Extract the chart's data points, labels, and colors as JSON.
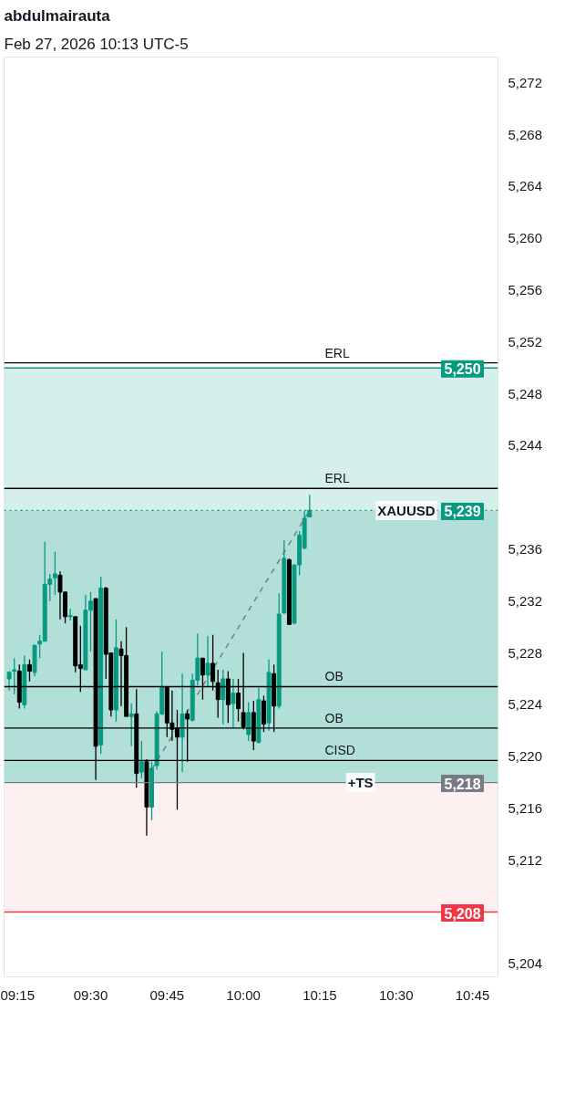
{
  "chart_data": {
    "type": "candlestick",
    "title": "abdulmairauta",
    "subtitle": "Feb 27, 2026 10:13 UTC-5",
    "x": [
      "2026-02-27T09:14",
      "2026-02-27T09:15",
      "2026-02-27T09:16",
      "2026-02-27T09:17",
      "2026-02-27T09:18",
      "2026-02-27T09:19",
      "2026-02-27T09:20",
      "2026-02-27T09:21",
      "2026-02-27T09:22",
      "2026-02-27T09:23",
      "2026-02-27T09:24",
      "2026-02-27T09:25",
      "2026-02-27T09:26",
      "2026-02-27T09:27",
      "2026-02-27T09:28",
      "2026-02-27T09:29",
      "2026-02-27T09:30",
      "2026-02-27T09:31",
      "2026-02-27T09:32",
      "2026-02-27T09:33",
      "2026-02-27T09:34",
      "2026-02-27T09:35",
      "2026-02-27T09:36",
      "2026-02-27T09:37",
      "2026-02-27T09:38",
      "2026-02-27T09:39",
      "2026-02-27T09:40",
      "2026-02-27T09:41",
      "2026-02-27T09:42",
      "2026-02-27T09:43",
      "2026-02-27T09:44",
      "2026-02-27T09:45",
      "2026-02-27T09:46",
      "2026-02-27T09:47",
      "2026-02-27T09:48",
      "2026-02-27T09:49",
      "2026-02-27T09:50",
      "2026-02-27T09:51",
      "2026-02-27T09:52",
      "2026-02-27T09:53",
      "2026-02-27T09:54",
      "2026-02-27T09:55",
      "2026-02-27T09:56",
      "2026-02-27T09:57",
      "2026-02-27T09:58",
      "2026-02-27T09:59",
      "2026-02-27T10:00",
      "2026-02-27T10:01",
      "2026-02-27T10:02",
      "2026-02-27T10:03",
      "2026-02-27T10:04",
      "2026-02-27T10:05",
      "2026-02-27T10:06",
      "2026-02-27T10:07",
      "2026-02-27T10:08",
      "2026-02-27T10:09",
      "2026-02-27T10:10",
      "2026-02-27T10:11",
      "2026-02-27T10:12",
      "2026-02-27T10:13"
    ],
    "ohlc": [
      [
        5226.0,
        5226.6,
        5225.1,
        5226.5
      ],
      [
        5226.6,
        5227.6,
        5224.8,
        5226.7
      ],
      [
        5226.6,
        5227.1,
        5223.7,
        5224.2
      ],
      [
        5224.0,
        5227.8,
        5223.7,
        5227.1
      ],
      [
        5227.1,
        5227.5,
        5225.8,
        5226.6
      ],
      [
        5226.5,
        5228.6,
        5226.2,
        5228.6
      ],
      [
        5228.7,
        5229.4,
        5227.6,
        5228.9
      ],
      [
        5228.9,
        5236.6,
        5228.9,
        5233.3
      ],
      [
        5233.3,
        5234.1,
        5232.0,
        5233.7
      ],
      [
        5233.8,
        5235.8,
        5232.5,
        5234.1
      ],
      [
        5234.0,
        5234.3,
        5230.6,
        5232.7
      ],
      [
        5232.7,
        5232.7,
        5230.3,
        5230.8
      ],
      [
        5230.8,
        5231.4,
        5230.5,
        5230.9
      ],
      [
        5230.8,
        5230.8,
        5226.5,
        5227.0
      ],
      [
        5227.1,
        5230.1,
        5225.0,
        5226.8
      ],
      [
        5226.7,
        5232.5,
        5226.7,
        5231.3
      ],
      [
        5231.3,
        5232.7,
        5228.1,
        5232.0
      ],
      [
        5232.2,
        5232.2,
        5218.2,
        5220.8
      ],
      [
        5220.9,
        5233.9,
        5220.2,
        5233.0
      ],
      [
        5233.0,
        5233.1,
        5226.0,
        5227.9
      ],
      [
        5228.0,
        5228.0,
        5223.1,
        5223.6
      ],
      [
        5223.6,
        5230.6,
        5222.7,
        5228.4
      ],
      [
        5228.3,
        5228.9,
        5223.9,
        5227.8
      ],
      [
        5227.8,
        5230.0,
        5223.1,
        5223.1
      ],
      [
        5223.1,
        5224.1,
        5220.8,
        5223.3
      ],
      [
        5223.3,
        5225.2,
        5217.6,
        5218.7
      ],
      [
        5218.8,
        5221.2,
        5218.3,
        5219.6
      ],
      [
        5219.6,
        5219.8,
        5213.9,
        5216.1
      ],
      [
        5216.1,
        5219.6,
        5215.1,
        5219.1
      ],
      [
        5219.3,
        5223.5,
        5219.0,
        5223.3
      ],
      [
        5223.3,
        5228.1,
        5223.2,
        5225.4
      ],
      [
        5225.4,
        5225.4,
        5221.5,
        5222.6
      ],
      [
        5222.6,
        5225.1,
        5221.2,
        5222.1
      ],
      [
        5222.2,
        5223.6,
        5215.9,
        5221.5
      ],
      [
        5221.5,
        5226.4,
        5218.8,
        5223.3
      ],
      [
        5223.3,
        5223.6,
        5219.6,
        5222.9
      ],
      [
        5222.8,
        5226.4,
        5222.7,
        5225.9
      ],
      [
        5225.9,
        5229.5,
        5225.5,
        5227.6
      ],
      [
        5227.6,
        5227.6,
        5224.4,
        5226.3
      ],
      [
        5226.3,
        5229.3,
        5225.4,
        5227.2
      ],
      [
        5227.2,
        5229.4,
        5225.1,
        5225.8
      ],
      [
        5225.7,
        5226.7,
        5223.0,
        5224.4
      ],
      [
        5224.4,
        5226.7,
        5222.5,
        5226.0
      ],
      [
        5226.0,
        5226.6,
        5222.6,
        5224.0
      ],
      [
        5224.1,
        5226.0,
        5222.2,
        5224.9
      ],
      [
        5224.9,
        5226.0,
        5222.7,
        5223.7
      ],
      [
        5223.4,
        5228.0,
        5222.1,
        5222.3
      ],
      [
        5221.7,
        5224.2,
        5221.2,
        5223.4
      ],
      [
        5223.4,
        5224.3,
        5220.5,
        5221.2
      ],
      [
        5221.1,
        5225.3,
        5221.0,
        5224.4
      ],
      [
        5224.3,
        5224.7,
        5221.9,
        5222.5
      ],
      [
        5222.6,
        5227.5,
        5222.0,
        5226.5
      ],
      [
        5226.4,
        5227.1,
        5221.9,
        5223.9
      ],
      [
        5223.9,
        5232.6,
        5223.7,
        5231.0
      ],
      [
        5231.1,
        5236.7,
        5231.0,
        5235.3
      ],
      [
        5235.2,
        5235.3,
        5230.2,
        5230.2
      ],
      [
        5230.3,
        5234.8,
        5230.2,
        5234.8
      ],
      [
        5234.8,
        5237.4,
        5234.0,
        5237.1
      ],
      [
        5236.1,
        5239.0,
        5236.0,
        5238.4
      ],
      [
        5238.5,
        5240.2,
        5238.5,
        5239.0
      ]
    ],
    "colors": [
      "#089981",
      "#089981",
      "#000000",
      "#089981",
      "#000000",
      "#089981",
      "#089981",
      "#089981",
      "#089981",
      "#089981",
      "#000000",
      "#000000",
      "#089981",
      "#000000",
      "#000000",
      "#089981",
      "#089981",
      "#000000",
      "#089981",
      "#000000",
      "#000000",
      "#089981",
      "#000000",
      "#000000",
      "#089981",
      "#000000",
      "#089981",
      "#000000",
      "#089981",
      "#089981",
      "#089981",
      "#000000",
      "#000000",
      "#000000",
      "#089981",
      "#000000",
      "#089981",
      "#089981",
      "#000000",
      "#089981",
      "#000000",
      "#000000",
      "#089981",
      "#000000",
      "#089981",
      "#000000",
      "#000000",
      "#089981",
      "#000000",
      "#089981",
      "#000000",
      "#089981",
      "#000000",
      "#089981",
      "#089981",
      "#000000",
      "#089981",
      "#089981",
      "#089981",
      "#089981"
    ],
    "series": [
      {
        "type": "line",
        "x": [
          "2026-02-27T09:42",
          "2026-02-27T10:13"
        ],
        "values": [
          5219.0,
          5239.0
        ],
        "color": "#787b86",
        "line_style": "dashed"
      }
    ],
    "xlim": [
      "2026-02-27T09:13",
      "2026-02-27T10:50"
    ],
    "xticks": [
      {
        "value": "2026-02-27T09:15",
        "label": "09:15"
      },
      {
        "value": "2026-02-27T09:30",
        "label": "09:30"
      },
      {
        "value": "2026-02-27T09:45",
        "label": "09:45"
      },
      {
        "value": "2026-02-27T10:00",
        "label": "10:00"
      },
      {
        "value": "2026-02-27T10:15",
        "label": "10:15"
      },
      {
        "value": "2026-02-27T10:30",
        "label": "10:30"
      },
      {
        "value": "2026-02-27T10:45",
        "label": "10:45"
      }
    ],
    "ylim": [
      5203,
      5274
    ],
    "yticks": [
      {
        "value": 5204,
        "label": "5,204"
      },
      {
        "value": 5212,
        "label": "5,212"
      },
      {
        "value": 5216,
        "label": "5,216"
      },
      {
        "value": 5220,
        "label": "5,220"
      },
      {
        "value": 5224,
        "label": "5,224"
      },
      {
        "value": 5228,
        "label": "5,228"
      },
      {
        "value": 5232,
        "label": "5,232"
      },
      {
        "value": 5236,
        "label": "5,236"
      },
      {
        "value": 5244,
        "label": "5,244"
      },
      {
        "value": 5248,
        "label": "5,248"
      },
      {
        "value": 5252,
        "label": "5,252"
      },
      {
        "value": 5256,
        "label": "5,256"
      },
      {
        "value": 5260,
        "label": "5,260"
      },
      {
        "value": 5264,
        "label": "5,264"
      },
      {
        "value": 5268,
        "label": "5,268"
      },
      {
        "value": 5272,
        "label": "5,272"
      }
    ],
    "bands": [
      {
        "axis": "y",
        "from": 5218,
        "to": 5250,
        "color": "#d5efea"
      },
      {
        "axis": "y",
        "from": 5218,
        "to": 5239,
        "color": "#b2dfd8"
      },
      {
        "axis": "y",
        "from": 5208,
        "to": 5218,
        "color": "#fdf0f0"
      }
    ],
    "ref_lines": [
      {
        "axis": "y",
        "value": 5250.4,
        "label": "ERL"
      },
      {
        "axis": "y",
        "value": 5240.7,
        "label": "ERL"
      },
      {
        "axis": "y",
        "value": 5225.4,
        "label": "OB"
      },
      {
        "axis": "y",
        "value": 5222.2,
        "label": "OB"
      },
      {
        "axis": "y",
        "value": 5219.7,
        "label": "CISD"
      },
      {
        "axis": "y",
        "value": 5250,
        "label": "5,250",
        "color": "#089981"
      },
      {
        "axis": "y",
        "value": 5239,
        "label": "5,239",
        "color": "#089981",
        "line_style": "dotted"
      },
      {
        "axis": "y",
        "value": 5218,
        "label": "5,218",
        "color": "#787b86"
      },
      {
        "axis": "y",
        "value": 5208,
        "label": "5,208",
        "color": "#f23645"
      }
    ],
    "annotations": [
      {
        "text": "XAUUSD",
        "x": "2026-02-27T10:32",
        "y": 5239
      },
      {
        "text": "+TS",
        "x": "2026-02-27T10:23",
        "y": 5218
      }
    ],
    "grid": false
  }
}
